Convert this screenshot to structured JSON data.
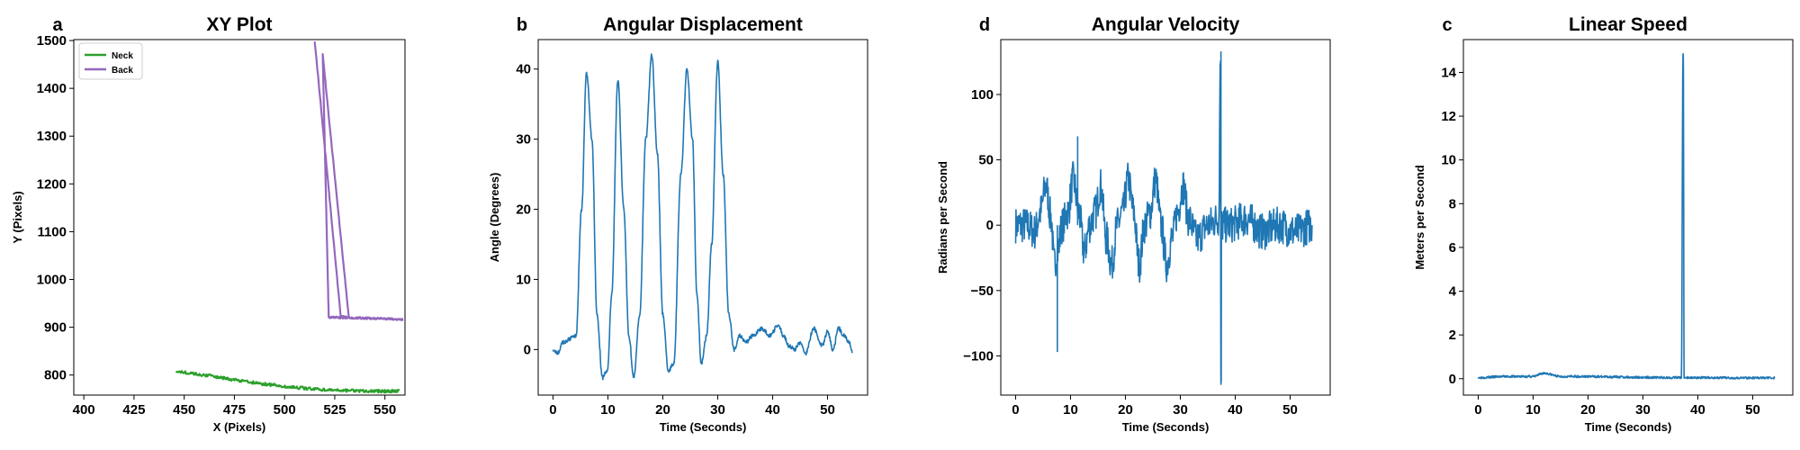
{
  "colors": {
    "blue": "#1f77b4",
    "green": "#2ca02c",
    "purple": "#9467bd"
  },
  "chart_data": [
    {
      "id": "xy",
      "letter": "a",
      "type": "line",
      "title": "XY Plot",
      "xlabel": "X (Pixels)",
      "ylabel": "Y (Pixels)",
      "xlim": [
        395,
        560
      ],
      "ylim": [
        758,
        1502
      ],
      "xticks": [
        400,
        425,
        450,
        475,
        500,
        525,
        550
      ],
      "yticks": [
        800,
        900,
        1000,
        1100,
        1200,
        1300,
        1400,
        1500
      ],
      "grid": false,
      "legend": "top-left",
      "series": [
        {
          "name": "Neck",
          "color": "#2ca02c",
          "noise": 3,
          "x": [
            446,
            460,
            475,
            490,
            505,
            520,
            535,
            550,
            557
          ],
          "y": [
            808,
            800,
            790,
            781,
            774,
            769,
            767,
            766,
            767
          ]
        },
        {
          "name": "Back",
          "color": "#9467bd",
          "noise": 2,
          "x": [
            515,
            528,
            532,
            519,
            522,
            530,
            540,
            550,
            559
          ],
          "y": [
            1500,
            922,
            920,
            1470,
            921,
            920,
            919,
            918,
            916
          ]
        }
      ]
    },
    {
      "id": "angdisp",
      "letter": "b",
      "type": "line",
      "title": "Angular Displacement",
      "xlabel": "Time (Seconds)",
      "ylabel": "Angle (Degrees)",
      "xlim": [
        -2.7,
        57.3
      ],
      "ylim": [
        -6.5,
        44.2
      ],
      "xticks": [
        0,
        10,
        20,
        30,
        40,
        50
      ],
      "yticks": [
        0,
        10,
        20,
        30,
        40
      ],
      "grid": false,
      "series": [
        {
          "color": "#1f77b4",
          "noise": 0.3,
          "x": [
            0,
            0.8,
            1.8,
            3.0,
            4.2,
            5.2,
            6.1,
            7.1,
            8.0,
            9.0,
            9.9,
            10.7,
            11.8,
            12.9,
            13.8,
            14.7,
            15.8,
            16.9,
            18.0,
            19.0,
            20.0,
            21.0,
            22.0,
            23.3,
            24.4,
            25.4,
            26.2,
            27.0,
            28.0,
            28.9,
            30.0,
            31.0,
            32.0,
            33.0,
            34.0,
            35.0,
            36.5,
            38.0,
            39.5,
            41.0,
            42.0,
            43.0,
            44.0,
            45.0,
            46.0,
            47.5,
            49.0,
            50.0,
            51.0,
            52.0,
            53.0,
            54.0,
            54.5
          ],
          "y": [
            0,
            -0.5,
            1.0,
            1.5,
            2.0,
            20,
            39.5,
            30,
            5,
            -4,
            -3,
            8,
            38.5,
            20,
            2,
            -4,
            5,
            30,
            42,
            28,
            5,
            -3,
            -2,
            25,
            40,
            30,
            8,
            -2,
            2,
            15,
            41,
            25,
            5,
            0,
            2,
            1,
            2,
            3,
            2,
            3.5,
            2,
            0.5,
            0,
            1,
            -0.5,
            3,
            0.5,
            2.5,
            0,
            3,
            2,
            1,
            -0.5
          ]
        }
      ]
    },
    {
      "id": "angvel",
      "letter": "d",
      "type": "line",
      "title": "Angular Velocity",
      "xlabel": "Time (Seconds)",
      "ylabel": "Radians per Second",
      "xlim": [
        -2.7,
        57.3
      ],
      "ylim": [
        -130,
        142
      ],
      "xticks": [
        0,
        10,
        20,
        30,
        40,
        50
      ],
      "yticks": [
        -100,
        -50,
        0,
        50,
        100
      ],
      "grid": false,
      "series": [
        {
          "color": "#1f77b4",
          "noise": 14,
          "seed": 7,
          "x": [
            0,
            2,
            3.5,
            4.5,
            5.5,
            6.5,
            7,
            7.6,
            8.5,
            9.5,
            10.5,
            11.5,
            12.5,
            13.5,
            14.5,
            15.5,
            16.5,
            17.5,
            18.5,
            19.5,
            20.5,
            21.5,
            22.5,
            23.5,
            24.5,
            25.5,
            26.5,
            27.5,
            28.5,
            29.5,
            30.5,
            31.5,
            33,
            35,
            37,
            37.3,
            37.4,
            37.5,
            39,
            42,
            45,
            48,
            51,
            54
          ],
          "y": [
            0,
            0,
            -5,
            10,
            30,
            5,
            -30,
            -20,
            0,
            10,
            35,
            10,
            -20,
            0,
            10,
            30,
            -10,
            -30,
            0,
            10,
            35,
            10,
            -30,
            0,
            10,
            35,
            0,
            -30,
            -10,
            10,
            30,
            5,
            -10,
            0,
            5,
            133,
            -120,
            0,
            0,
            5,
            -5,
            0,
            -5,
            0
          ]
        }
      ],
      "spikes": [
        {
          "x": 7.6,
          "y": -97
        },
        {
          "x": 37.4,
          "y": 133
        },
        {
          "x": 37.45,
          "y": -120
        },
        {
          "x": 11.3,
          "y": 68
        }
      ]
    },
    {
      "id": "linspeed",
      "letter": "c",
      "type": "line",
      "title": "Linear Speed",
      "xlabel": "Time (Seconds)",
      "ylabel": "Meters per Second",
      "xlim": [
        -2.7,
        57.3
      ],
      "ylim": [
        -0.75,
        15.5
      ],
      "xticks": [
        0,
        10,
        20,
        30,
        40,
        50
      ],
      "yticks": [
        0,
        2,
        4,
        6,
        8,
        10,
        12,
        14
      ],
      "grid": false,
      "series": [
        {
          "color": "#1f77b4",
          "noise": 0.05,
          "seed": 3,
          "x": [
            0,
            5,
            10,
            12,
            15,
            20,
            25,
            30,
            35,
            37,
            37.3,
            37.35,
            37.5,
            40,
            45,
            50,
            54
          ],
          "y": [
            0.05,
            0.1,
            0.1,
            0.25,
            0.1,
            0.1,
            0.08,
            0.06,
            0.05,
            0.05,
            14.8,
            14.8,
            0.05,
            0.05,
            0.04,
            0.04,
            0.04
          ]
        }
      ]
    }
  ]
}
